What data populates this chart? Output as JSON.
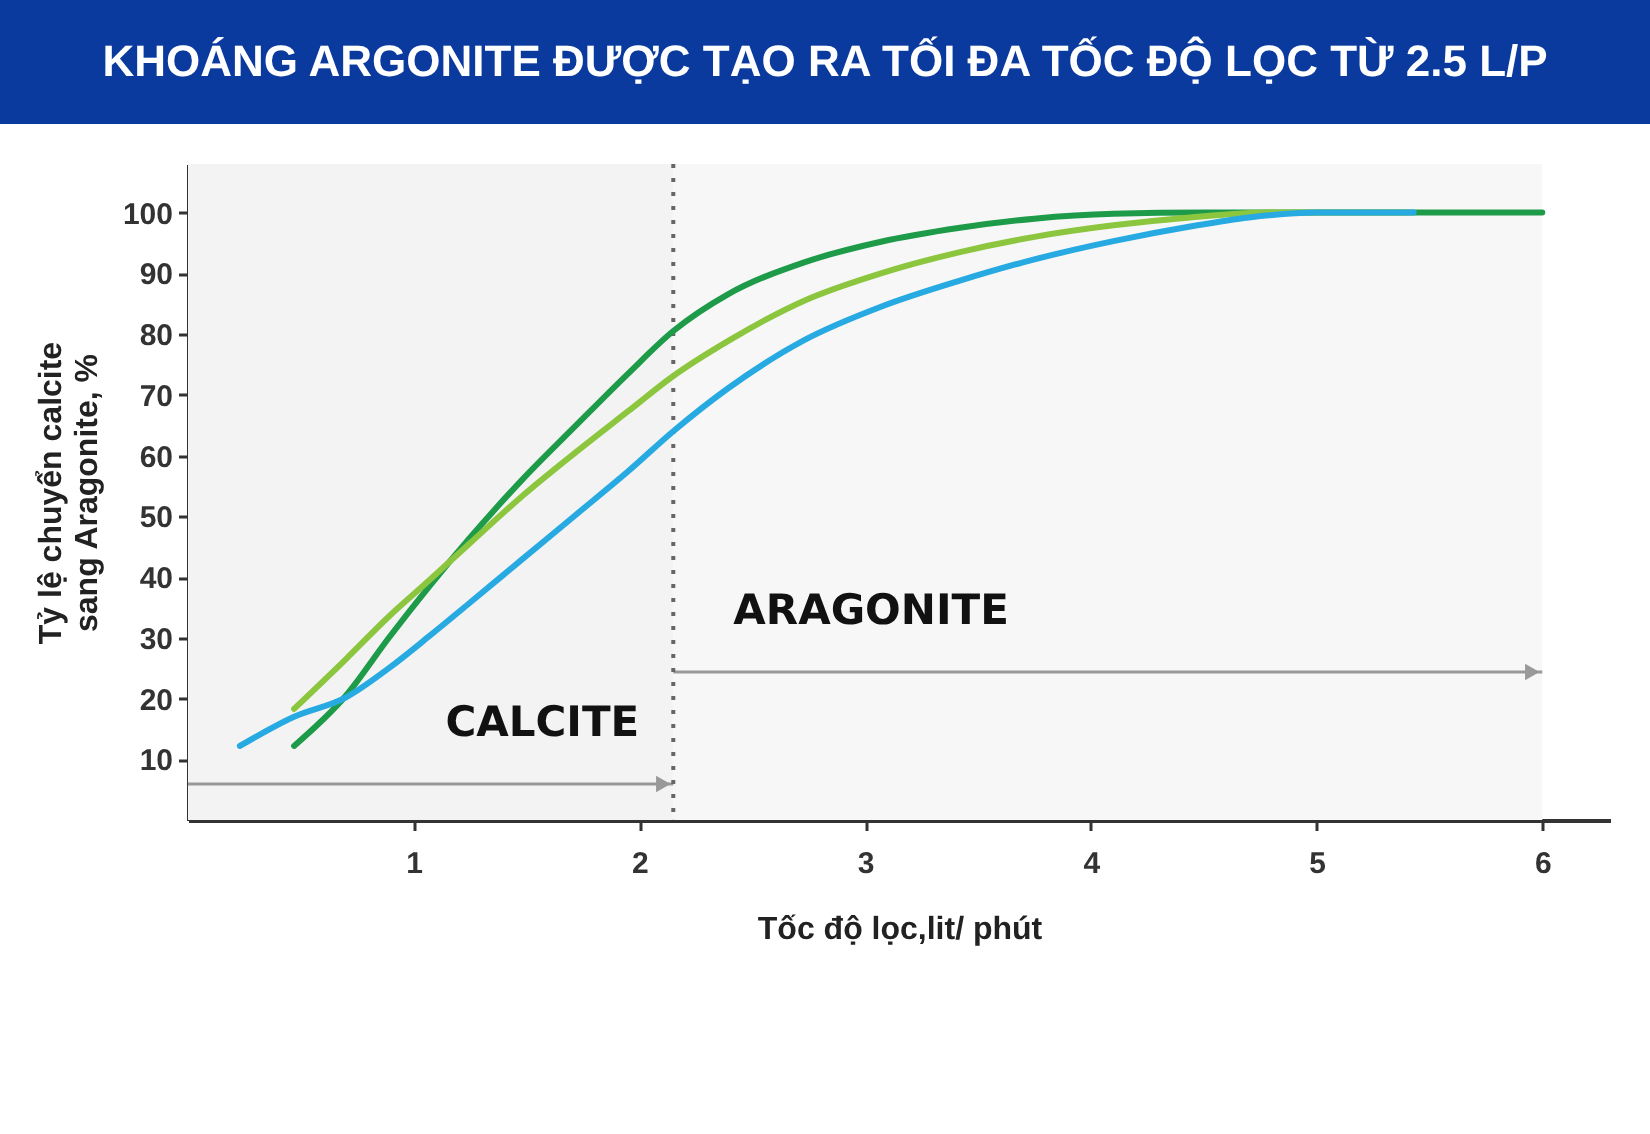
{
  "chart_data": {
    "type": "line",
    "title": "KHOÁNG ARGONITE ĐƯỢC TẠO RA TỐI ĐA TỐC ĐỘ LỌC TỪ 2.5 L/P",
    "xlabel": "Tốc độ lọc,lit/ phút",
    "ylabel": "Tỷ lệ chuyển calcite\nsang Aragonite, %",
    "xlim": [
      0,
      6.3
    ],
    "ylim": [
      0,
      108
    ],
    "xticks": [
      1,
      2,
      3,
      4,
      5,
      6
    ],
    "yticks": [
      10,
      20,
      30,
      40,
      50,
      60,
      70,
      80,
      90,
      100
    ],
    "ref_lines": [
      {
        "axis": "x",
        "value": 2.15,
        "line_style": "dotted",
        "color": "#666666"
      }
    ],
    "bands": [
      {
        "axis": "x",
        "from": 0,
        "to": 2.15,
        "label": "CALCITE",
        "color": "#f3f3f3"
      },
      {
        "axis": "x",
        "from": 2.15,
        "to": 6,
        "label": "ARAGONITE",
        "color": "#f7f7f7"
      }
    ],
    "series": [
      {
        "color": "#1e9b48",
        "x": [
          0.47,
          0.7,
          0.89,
          1.07,
          1.25,
          1.48,
          1.72,
          1.95,
          2.15,
          2.39,
          2.73,
          3.07,
          3.42,
          3.75,
          4.1,
          4.5,
          6.0
        ],
        "values": [
          12.2,
          20.5,
          30,
          38.5,
          46.5,
          56,
          65,
          73.5,
          80.5,
          86.5,
          91.8,
          95.2,
          97.5,
          99,
          99.8,
          100,
          100
        ]
      },
      {
        "color": "#8cc63f",
        "x": [
          0.47,
          0.7,
          0.89,
          1.07,
          1.25,
          1.48,
          1.72,
          1.95,
          2.15,
          2.39,
          2.73,
          3.07,
          3.42,
          3.75,
          4.1,
          4.44,
          4.8,
          5.4
        ],
        "values": [
          18.3,
          26.5,
          33.5,
          39.5,
          45.6,
          53.3,
          60.6,
          67.3,
          73.1,
          78.8,
          85.5,
          90,
          93.5,
          96,
          97.9,
          99.2,
          100,
          100
        ]
      },
      {
        "color": "#27aae1",
        "x": [
          0.23,
          0.47,
          0.7,
          0.89,
          1.07,
          1.25,
          1.48,
          1.72,
          1.95,
          2.15,
          2.39,
          2.73,
          3.07,
          3.42,
          3.75,
          4.1,
          4.44,
          4.7,
          5.0,
          5.43
        ],
        "values": [
          12.2,
          17,
          20.2,
          25,
          30.3,
          35.8,
          42.9,
          50.3,
          57.4,
          64,
          71,
          79,
          84.5,
          88.8,
          92.3,
          95.3,
          97.7,
          99.2,
          100,
          100
        ]
      }
    ]
  }
}
